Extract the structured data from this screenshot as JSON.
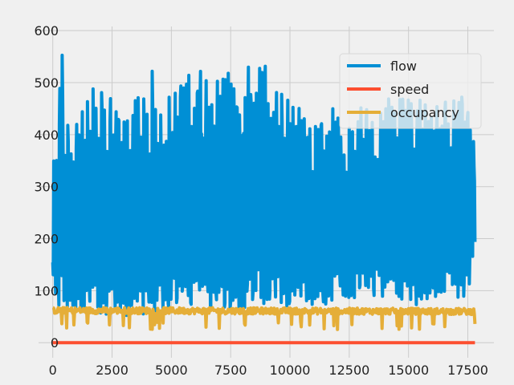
{
  "chart_data": {
    "type": "line",
    "title": "",
    "xlabel": "",
    "ylabel": "",
    "xlim": [
      -600,
      18600
    ],
    "ylim": [
      -29,
      608
    ],
    "grid": true,
    "legend_position": "top-right",
    "x_ticks": [
      0,
      2500,
      5000,
      7500,
      10000,
      12500,
      15000,
      17500
    ],
    "x_tick_labels": [
      "0",
      "2500",
      "5000",
      "7500",
      "10000",
      "12500",
      "15000",
      "17500"
    ],
    "y_ticks": [
      0,
      100,
      200,
      300,
      400,
      500,
      600
    ],
    "y_tick_labels": [
      "0",
      "100",
      "200",
      "300",
      "400",
      "500",
      "600"
    ],
    "series": [
      {
        "name": "flow",
        "color": "#008fd5",
        "x": [
          0,
          200,
          300,
          400,
          500,
          650,
          800,
          1000,
          1200,
          1400,
          1700,
          2000,
          2300,
          2600,
          3000,
          3300,
          3600,
          3900,
          4200,
          4500,
          4800,
          5100,
          5400,
          5700,
          6000,
          6300,
          6600,
          6900,
          7200,
          7500,
          7800,
          8100,
          8400,
          8700,
          9000,
          9300,
          9600,
          9900,
          10200,
          10500,
          10800,
          11100,
          11400,
          11700,
          12000,
          12300,
          12600,
          12900,
          13200,
          13500,
          13800,
          14100,
          14400,
          14700,
          15000,
          15300,
          15600,
          15900,
          16200,
          16500,
          16800,
          17100,
          17400,
          17800
        ],
        "min": [
          120,
          60,
          55,
          50,
          60,
          55,
          50,
          60,
          50,
          55,
          60,
          50,
          55,
          55,
          50,
          55,
          60,
          50,
          55,
          60,
          60,
          55,
          60,
          55,
          60,
          60,
          55,
          65,
          60,
          65,
          60,
          60,
          55,
          60,
          65,
          70,
          65,
          70,
          70,
          75,
          70,
          75,
          70,
          80,
          85,
          80,
          85,
          80,
          85,
          90,
          85,
          90,
          85,
          80,
          75,
          70,
          80,
          75,
          80,
          85,
          80,
          85,
          80,
          150
        ],
        "max": [
          410,
          450,
          530,
          575,
          510,
          430,
          380,
          480,
          440,
          460,
          490,
          500,
          470,
          470,
          500,
          470,
          520,
          480,
          530,
          480,
          500,
          520,
          500,
          520,
          530,
          520,
          530,
          510,
          520,
          530,
          520,
          530,
          540,
          550,
          530,
          490,
          480,
          470,
          460,
          450,
          450,
          440,
          460,
          470,
          460,
          440,
          450,
          470,
          460,
          450,
          440,
          470,
          480,
          470,
          470,
          460,
          470,
          460,
          460,
          470,
          460,
          480,
          470,
          400
        ]
      },
      {
        "name": "speed",
        "color": "#fc4f30",
        "x": [
          0,
          17800
        ],
        "values": [
          0,
          0
        ]
      },
      {
        "name": "occupancy",
        "color": "#e5ae38",
        "x": [
          0,
          17800
        ],
        "values": [
          62,
          60
        ],
        "band_min": 25,
        "band_max": 72
      }
    ]
  }
}
